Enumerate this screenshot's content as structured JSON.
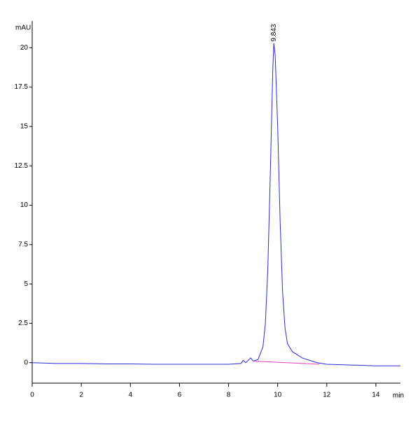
{
  "chart_data": {
    "type": "line",
    "y_unit": "mAU",
    "x_unit": "min",
    "xlim": [
      0,
      15
    ],
    "ylim": [
      -1.3,
      21.7
    ],
    "xticks": [
      0,
      2,
      4,
      6,
      8,
      10,
      12,
      14
    ],
    "yticks": [
      0,
      2.5,
      5,
      7.5,
      10,
      12.5,
      15,
      17.5,
      20
    ],
    "series": [
      {
        "color": "#2b2bd6",
        "x": [
          0,
          1,
          2,
          3,
          4,
          5,
          6,
          7,
          8,
          8.5,
          8.6,
          8.7,
          8.9,
          9.0,
          9.2,
          9.4,
          9.5,
          9.6,
          9.7,
          9.8,
          9.843,
          9.9,
          10.0,
          10.1,
          10.2,
          10.3,
          10.4,
          10.6,
          10.8,
          11.0,
          11.3,
          11.6,
          12,
          13,
          14,
          15
        ],
        "values": [
          0,
          -0.05,
          -0.05,
          -0.08,
          -0.08,
          -0.1,
          -0.1,
          -0.1,
          -0.1,
          -0.05,
          0.15,
          0.0,
          0.3,
          0.1,
          0.2,
          1.0,
          2.5,
          6,
          12,
          18.5,
          20.3,
          19.5,
          15,
          9,
          4.5,
          2.2,
          1.2,
          0.7,
          0.5,
          0.3,
          0.15,
          0,
          -0.1,
          -0.15,
          -0.2,
          -0.2
        ]
      },
      {
        "color": "#e040c0",
        "x": [
          9.0,
          11.7
        ],
        "values": [
          0.1,
          -0.1
        ]
      }
    ],
    "annotations": [
      {
        "text": "9.843",
        "x": 9.843,
        "y": 20.3
      }
    ]
  }
}
